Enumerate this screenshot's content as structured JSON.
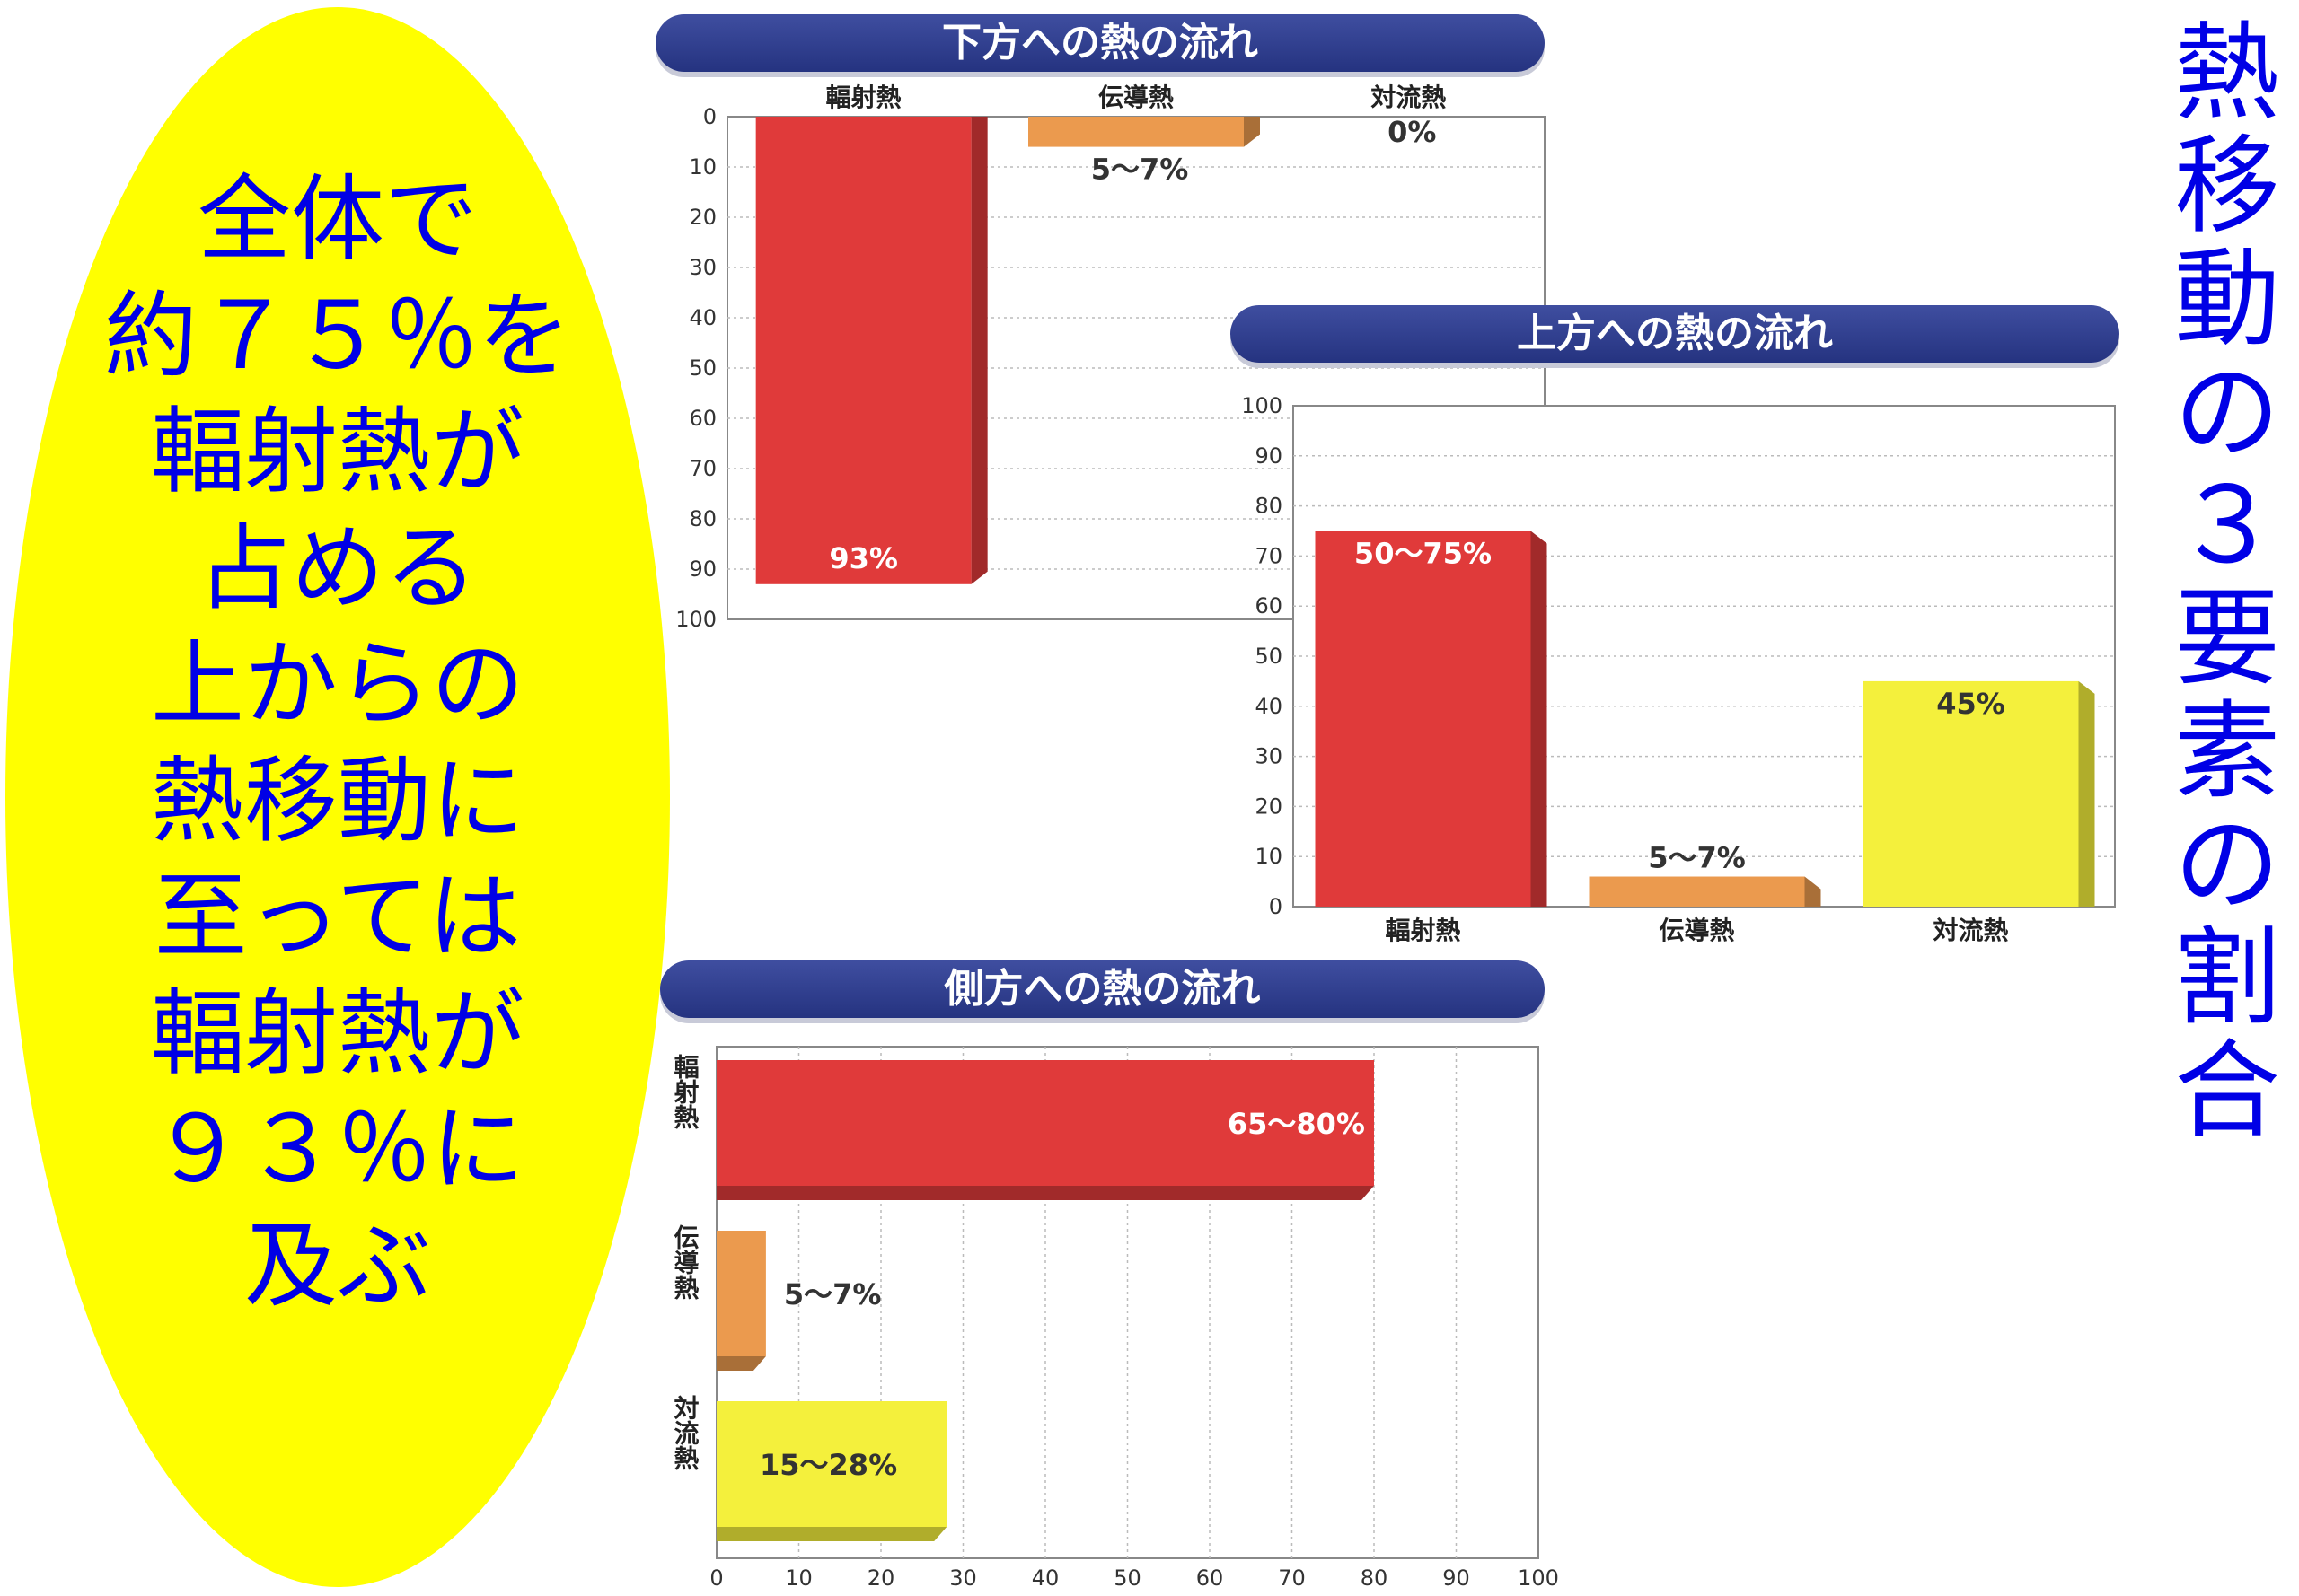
{
  "left_note": {
    "lines": [
      "全体で",
      "約７５％を",
      "輻射熱が",
      "占める",
      "上からの",
      "熱移動に",
      "至っては",
      "輻射熱が",
      "９３％に",
      "及ぶ"
    ]
  },
  "side_title": {
    "chars": [
      "熱",
      "移",
      "動",
      "の",
      "３",
      "要",
      "素",
      "の",
      "割",
      "合"
    ]
  },
  "colors": {
    "radiation": "#e03a3a",
    "conduction": "#eb9a4e",
    "convection": "#f4f03c",
    "banner": "#2f3d8c",
    "note_text": "#0000e6",
    "note_bg": "#ffff00"
  },
  "chart_data": [
    {
      "type": "bar",
      "title": "下方への熱の流れ",
      "orientation": "vertical-inverted",
      "categories": [
        "輻射熱",
        "伝導熱",
        "対流熱"
      ],
      "values": [
        93,
        6,
        0
      ],
      "value_labels": [
        "93%",
        "5〜7%",
        "0%"
      ],
      "yticks": [
        "0",
        "10",
        "20",
        "30",
        "40",
        "50",
        "60",
        "70",
        "80",
        "90",
        "100"
      ],
      "ylim": [
        0,
        100
      ],
      "grid": true
    },
    {
      "type": "bar",
      "title": "上方への熱の流れ",
      "orientation": "vertical",
      "categories": [
        "輻射熱",
        "伝導熱",
        "対流熱"
      ],
      "values": [
        75,
        6,
        45
      ],
      "value_labels": [
        "50〜75%",
        "5〜7%",
        "45%"
      ],
      "yticks": [
        "0",
        "10",
        "20",
        "30",
        "40",
        "50",
        "60",
        "70",
        "80",
        "90",
        "100"
      ],
      "ylim": [
        0,
        100
      ],
      "grid": true
    },
    {
      "type": "bar",
      "title": "側方への熱の流れ",
      "orientation": "horizontal",
      "categories": [
        "輻射熱",
        "伝導熱",
        "対流熱"
      ],
      "values": [
        80,
        6,
        28
      ],
      "value_labels": [
        "65〜80%",
        "5〜7%",
        "15〜28%"
      ],
      "xticks": [
        "0",
        "10",
        "20",
        "30",
        "40",
        "50",
        "60",
        "70",
        "80",
        "90",
        "100"
      ],
      "xlim": [
        0,
        100
      ],
      "grid": true
    }
  ]
}
